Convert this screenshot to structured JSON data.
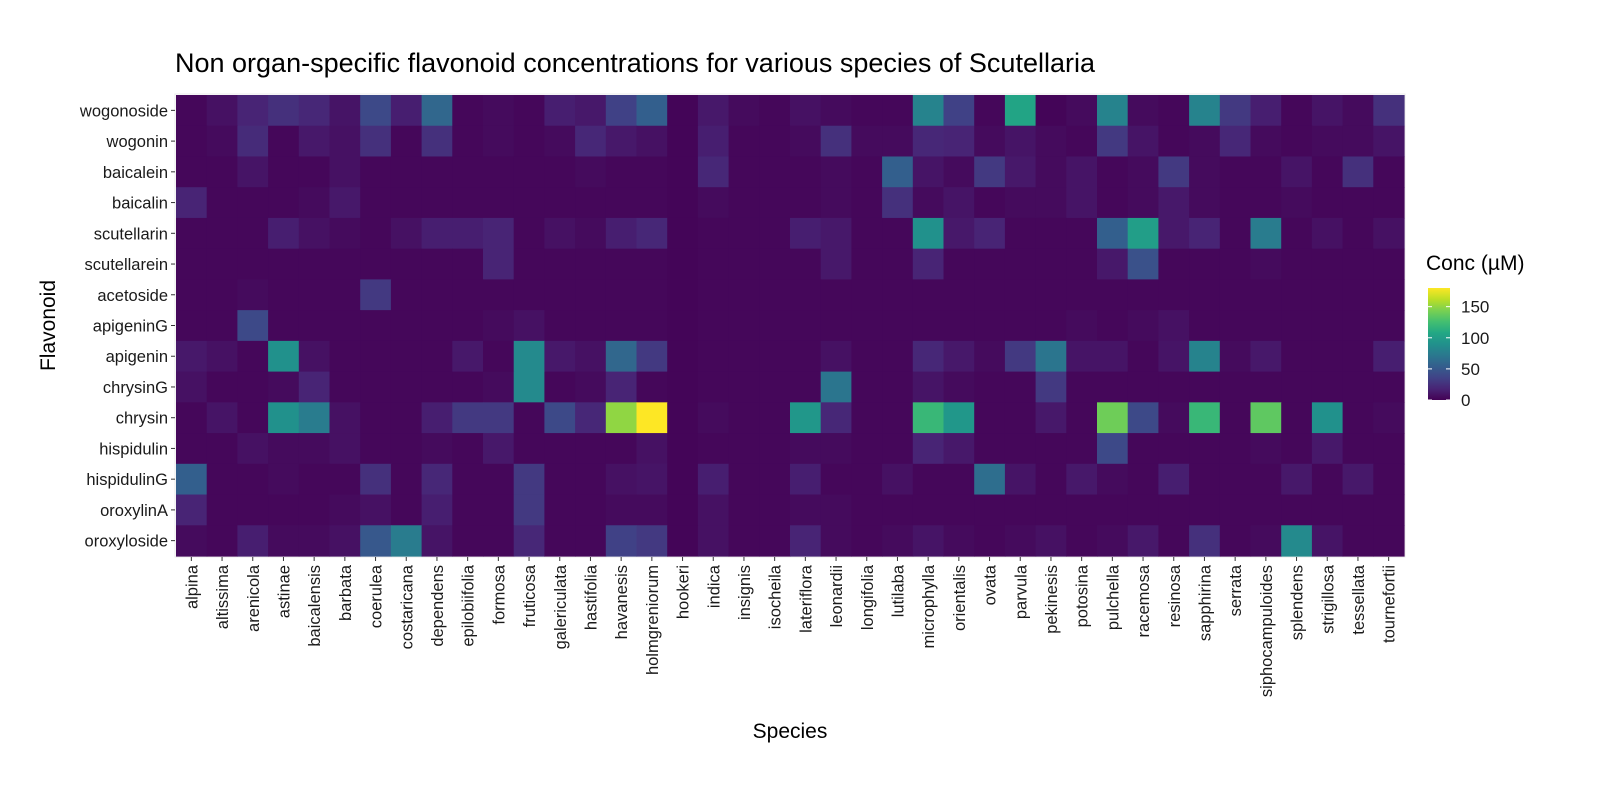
{
  "chart_data": {
    "type": "heatmap",
    "title": "Non organ-specific flavonoid concentrations for various species of Scutellaria",
    "xlabel": "Species",
    "ylabel": "Flavonoid",
    "legend_title": "Conc (µM)",
    "legend_position": "right",
    "color_scale": "viridis",
    "colorbar_range": [
      0,
      180
    ],
    "colorbar_ticks": [
      "0",
      "50",
      "100",
      "150"
    ],
    "grid": false,
    "x": [
      "alpina",
      "altissima",
      "arenicola",
      "astinae",
      "baicalensis",
      "barbata",
      "coerulea",
      "costaricana",
      "dependens",
      "epilobiifolia",
      "formosa",
      "fruticosa",
      "galericulata",
      "hastifolia",
      "havanesis",
      "holmgreniorum",
      "hookeri",
      "indica",
      "insignis",
      "isocheila",
      "lateriflora",
      "leonardii",
      "longifolia",
      "lutilaba",
      "microphylla",
      "orientalis",
      "ovata",
      "parvula",
      "pekinesis",
      "potosina",
      "pulchella",
      "racemosa",
      "resinosa",
      "sapphirina",
      "serrata",
      "siphocampuloides",
      "splendens",
      "strigillosa",
      "tessellata",
      "tournefortii"
    ],
    "y": [
      "wogonoside",
      "wogonin",
      "baicalein",
      "baicalin",
      "scutellarin",
      "scutellarein",
      "acetoside",
      "apigeninG",
      "apigenin",
      "chrysinG",
      "chrysin",
      "hispidulin",
      "hispidulinG",
      "oroxylinA",
      "oroxyloside"
    ],
    "values": [
      [
        3,
        8,
        18,
        25,
        20,
        10,
        40,
        15,
        60,
        3,
        5,
        3,
        15,
        12,
        35,
        55,
        2,
        12,
        5,
        3,
        8,
        5,
        3,
        3,
        80,
        35,
        3,
        105,
        2,
        5,
        80,
        5,
        3,
        80,
        30,
        15,
        3,
        10,
        5,
        25
      ],
      [
        3,
        5,
        22,
        3,
        12,
        8,
        25,
        3,
        25,
        3,
        5,
        3,
        5,
        20,
        12,
        8,
        2,
        15,
        3,
        3,
        5,
        25,
        5,
        5,
        20,
        18,
        5,
        10,
        5,
        3,
        30,
        10,
        3,
        5,
        20,
        5,
        3,
        5,
        5,
        10
      ],
      [
        3,
        3,
        10,
        3,
        3,
        8,
        3,
        3,
        3,
        3,
        3,
        3,
        3,
        5,
        3,
        3,
        2,
        20,
        3,
        3,
        3,
        5,
        3,
        55,
        10,
        5,
        30,
        12,
        5,
        10,
        3,
        5,
        30,
        5,
        3,
        3,
        10,
        3,
        25,
        3
      ],
      [
        18,
        3,
        3,
        3,
        5,
        12,
        3,
        3,
        3,
        3,
        3,
        3,
        3,
        3,
        3,
        3,
        2,
        5,
        3,
        3,
        3,
        5,
        3,
        25,
        5,
        10,
        3,
        5,
        5,
        10,
        3,
        5,
        12,
        5,
        3,
        3,
        5,
        3,
        3,
        3
      ],
      [
        3,
        3,
        3,
        15,
        8,
        5,
        3,
        8,
        15,
        15,
        18,
        3,
        8,
        5,
        15,
        20,
        2,
        3,
        3,
        3,
        15,
        12,
        3,
        3,
        90,
        12,
        18,
        3,
        3,
        3,
        55,
        100,
        12,
        18,
        3,
        75,
        3,
        8,
        3,
        8
      ],
      [
        3,
        3,
        3,
        3,
        3,
        3,
        3,
        3,
        3,
        3,
        18,
        3,
        3,
        3,
        3,
        3,
        2,
        3,
        3,
        3,
        3,
        12,
        3,
        3,
        18,
        3,
        3,
        3,
        3,
        3,
        12,
        45,
        3,
        3,
        3,
        5,
        3,
        3,
        3,
        3
      ],
      [
        3,
        3,
        5,
        3,
        3,
        3,
        30,
        3,
        3,
        3,
        3,
        3,
        3,
        3,
        3,
        3,
        2,
        3,
        3,
        3,
        3,
        3,
        3,
        3,
        3,
        3,
        3,
        3,
        3,
        3,
        3,
        3,
        3,
        3,
        3,
        3,
        3,
        3,
        3,
        3
      ],
      [
        3,
        3,
        40,
        3,
        3,
        3,
        3,
        3,
        3,
        3,
        5,
        8,
        3,
        3,
        3,
        3,
        2,
        3,
        3,
        3,
        3,
        3,
        3,
        3,
        3,
        3,
        3,
        3,
        3,
        5,
        3,
        5,
        8,
        3,
        3,
        3,
        3,
        3,
        3,
        3
      ],
      [
        12,
        8,
        3,
        90,
        8,
        3,
        3,
        3,
        3,
        12,
        3,
        85,
        12,
        8,
        60,
        30,
        2,
        3,
        3,
        3,
        3,
        8,
        3,
        3,
        20,
        12,
        5,
        30,
        70,
        10,
        10,
        3,
        10,
        80,
        5,
        12,
        3,
        3,
        3,
        15
      ],
      [
        8,
        3,
        3,
        5,
        18,
        3,
        3,
        3,
        3,
        3,
        5,
        85,
        3,
        5,
        18,
        3,
        2,
        3,
        3,
        3,
        3,
        70,
        3,
        3,
        10,
        5,
        3,
        3,
        30,
        3,
        3,
        3,
        3,
        3,
        3,
        3,
        3,
        3,
        3,
        3
      ],
      [
        3,
        10,
        3,
        90,
        75,
        8,
        3,
        3,
        15,
        30,
        30,
        3,
        40,
        20,
        150,
        180,
        2,
        5,
        3,
        3,
        95,
        20,
        3,
        3,
        120,
        95,
        3,
        3,
        12,
        3,
        140,
        40,
        5,
        120,
        3,
        135,
        3,
        90,
        3,
        5
      ],
      [
        3,
        3,
        8,
        5,
        5,
        8,
        3,
        3,
        5,
        3,
        12,
        3,
        3,
        3,
        3,
        8,
        2,
        3,
        3,
        3,
        5,
        5,
        3,
        3,
        18,
        12,
        3,
        3,
        3,
        3,
        40,
        3,
        3,
        3,
        3,
        5,
        3,
        12,
        3,
        3
      ],
      [
        55,
        3,
        3,
        5,
        3,
        3,
        25,
        3,
        20,
        3,
        3,
        30,
        3,
        3,
        8,
        10,
        2,
        15,
        3,
        3,
        15,
        3,
        3,
        8,
        3,
        3,
        65,
        10,
        3,
        12,
        5,
        3,
        15,
        3,
        3,
        3,
        12,
        3,
        12,
        3
      ],
      [
        18,
        3,
        3,
        3,
        3,
        5,
        8,
        3,
        15,
        3,
        3,
        30,
        3,
        3,
        5,
        5,
        2,
        8,
        3,
        3,
        5,
        5,
        3,
        3,
        3,
        3,
        3,
        3,
        3,
        3,
        3,
        3,
        3,
        3,
        3,
        3,
        3,
        3,
        3,
        3
      ],
      [
        5,
        3,
        15,
        5,
        5,
        8,
        50,
        75,
        10,
        3,
        3,
        20,
        3,
        3,
        35,
        30,
        2,
        8,
        3,
        3,
        18,
        5,
        3,
        5,
        10,
        5,
        3,
        5,
        8,
        3,
        5,
        12,
        3,
        25,
        3,
        5,
        85,
        10,
        3,
        3
      ]
    ]
  }
}
